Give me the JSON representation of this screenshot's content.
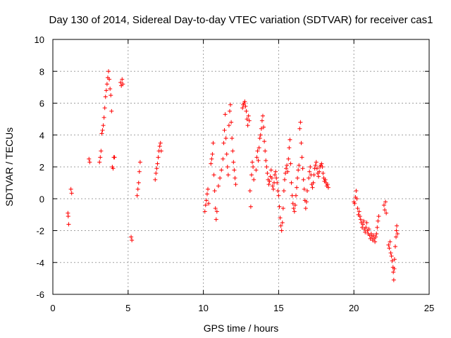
{
  "chart_data": {
    "type": "scatter",
    "title": "Day 130 of 2014, Sidereal Day-to-day VTEC variation (SDTVAR) for receiver cas1",
    "xlabel": "GPS time / hours",
    "ylabel": "SDTVAR / TECUs",
    "xlim": [
      0,
      25
    ],
    "ylim": [
      -6,
      10
    ],
    "xticks": [
      0,
      5,
      10,
      15,
      20,
      25
    ],
    "yticks": [
      -6,
      -4,
      -2,
      0,
      2,
      4,
      6,
      8,
      10
    ],
    "grid": true,
    "marker": "+",
    "color": "#ff0000",
    "series": [
      {
        "name": "SDTVAR",
        "points": [
          [
            1.0,
            -0.9
          ],
          [
            1.02,
            -1.1
          ],
          [
            1.05,
            -1.6
          ],
          [
            1.2,
            0.6
          ],
          [
            1.25,
            0.35
          ],
          [
            2.4,
            2.5
          ],
          [
            2.45,
            2.3
          ],
          [
            3.1,
            2.3
          ],
          [
            3.15,
            2.6
          ],
          [
            3.2,
            3.0
          ],
          [
            3.25,
            4.1
          ],
          [
            3.3,
            4.3
          ],
          [
            3.35,
            4.6
          ],
          [
            3.4,
            5.1
          ],
          [
            3.45,
            5.7
          ],
          [
            3.5,
            6.4
          ],
          [
            3.55,
            6.8
          ],
          [
            3.6,
            7.2
          ],
          [
            3.65,
            7.6
          ],
          [
            3.7,
            8.0
          ],
          [
            3.75,
            7.5
          ],
          [
            3.8,
            6.9
          ],
          [
            3.85,
            6.5
          ],
          [
            3.9,
            5.5
          ],
          [
            3.95,
            2.0
          ],
          [
            4.0,
            1.9
          ],
          [
            4.05,
            2.6
          ],
          [
            4.1,
            2.6
          ],
          [
            4.5,
            7.3
          ],
          [
            4.55,
            7.1
          ],
          [
            4.6,
            7.5
          ],
          [
            4.65,
            7.2
          ],
          [
            5.2,
            -2.4
          ],
          [
            5.25,
            -2.6
          ],
          [
            5.6,
            0.2
          ],
          [
            5.65,
            0.6
          ],
          [
            5.7,
            1.0
          ],
          [
            5.75,
            1.7
          ],
          [
            5.8,
            2.3
          ],
          [
            6.8,
            1.2
          ],
          [
            6.85,
            1.6
          ],
          [
            6.9,
            1.9
          ],
          [
            6.95,
            2.2
          ],
          [
            7.0,
            2.6
          ],
          [
            7.05,
            3.0
          ],
          [
            7.1,
            3.3
          ],
          [
            7.15,
            3.5
          ],
          [
            7.2,
            3.0
          ],
          [
            10.1,
            -0.8
          ],
          [
            10.15,
            -0.4
          ],
          [
            10.2,
            -0.1
          ],
          [
            10.25,
            0.3
          ],
          [
            10.3,
            0.6
          ],
          [
            10.35,
            -0.3
          ],
          [
            10.5,
            2.2
          ],
          [
            10.55,
            2.5
          ],
          [
            10.6,
            2.8
          ],
          [
            10.65,
            3.5
          ],
          [
            10.7,
            1.5
          ],
          [
            10.75,
            0.5
          ],
          [
            10.8,
            -0.6
          ],
          [
            10.85,
            -1.3
          ],
          [
            10.9,
            -0.8
          ],
          [
            11.0,
            0.8
          ],
          [
            11.1,
            1.3
          ],
          [
            11.2,
            1.8
          ],
          [
            11.3,
            2.5
          ],
          [
            11.35,
            3.5
          ],
          [
            11.4,
            4.3
          ],
          [
            11.45,
            5.3
          ],
          [
            11.5,
            3.8
          ],
          [
            11.55,
            2.8
          ],
          [
            11.6,
            2.0
          ],
          [
            11.65,
            1.5
          ],
          [
            11.7,
            4.6
          ],
          [
            11.75,
            5.5
          ],
          [
            11.8,
            5.9
          ],
          [
            11.85,
            4.8
          ],
          [
            11.9,
            3.8
          ],
          [
            11.95,
            3.0
          ],
          [
            12.0,
            2.3
          ],
          [
            12.05,
            1.8
          ],
          [
            12.1,
            1.3
          ],
          [
            12.15,
            0.9
          ],
          [
            12.6,
            5.7
          ],
          [
            12.65,
            5.9
          ],
          [
            12.7,
            6.0
          ],
          [
            12.75,
            6.1
          ],
          [
            12.8,
            5.8
          ],
          [
            12.85,
            5.5
          ],
          [
            12.9,
            5.0
          ],
          [
            12.95,
            4.6
          ],
          [
            13.0,
            5.2
          ],
          [
            13.05,
            4.9
          ],
          [
            13.1,
            0.5
          ],
          [
            13.15,
            -0.5
          ],
          [
            13.2,
            1.5
          ],
          [
            13.25,
            2.3
          ],
          [
            13.3,
            2.0
          ],
          [
            13.35,
            1.2
          ],
          [
            13.5,
            1.8
          ],
          [
            13.55,
            2.6
          ],
          [
            13.6,
            3.0
          ],
          [
            13.65,
            2.4
          ],
          [
            13.7,
            3.2
          ],
          [
            13.75,
            3.8
          ],
          [
            13.8,
            4.0
          ],
          [
            13.85,
            4.4
          ],
          [
            13.9,
            4.9
          ],
          [
            13.95,
            5.2
          ],
          [
            14.0,
            4.5
          ],
          [
            14.05,
            3.6
          ],
          [
            14.1,
            3.0
          ],
          [
            14.15,
            2.4
          ],
          [
            14.2,
            2.0
          ],
          [
            14.25,
            1.6
          ],
          [
            14.3,
            1.2
          ],
          [
            14.35,
            0.9
          ],
          [
            14.4,
            1.1
          ],
          [
            14.45,
            1.4
          ],
          [
            14.5,
            1.8
          ],
          [
            14.55,
            1.3
          ],
          [
            14.6,
            0.8
          ],
          [
            14.65,
            0.6
          ],
          [
            14.7,
            1.0
          ],
          [
            14.75,
            1.5
          ],
          [
            14.8,
            1.7
          ],
          [
            14.85,
            1.3
          ],
          [
            14.9,
            1.0
          ],
          [
            14.95,
            0.5
          ],
          [
            15.0,
            0.2
          ],
          [
            15.05,
            -0.5
          ],
          [
            15.1,
            -1.2
          ],
          [
            15.15,
            -1.7
          ],
          [
            15.2,
            -2.0
          ],
          [
            15.25,
            -1.5
          ],
          [
            15.3,
            -0.6
          ],
          [
            15.35,
            0.5
          ],
          [
            15.4,
            1.2
          ],
          [
            15.45,
            1.6
          ],
          [
            15.5,
            1.9
          ],
          [
            15.55,
            2.1
          ],
          [
            15.6,
            1.7
          ],
          [
            15.65,
            2.5
          ],
          [
            15.7,
            3.2
          ],
          [
            15.75,
            3.7
          ],
          [
            15.8,
            2.2
          ],
          [
            15.85,
            1.0
          ],
          [
            15.9,
            0.2
          ],
          [
            15.95,
            -0.3
          ],
          [
            16.0,
            -0.6
          ],
          [
            16.05,
            -0.8
          ],
          [
            16.1,
            -0.4
          ],
          [
            16.15,
            0.2
          ],
          [
            16.2,
            0.7
          ],
          [
            16.25,
            1.3
          ],
          [
            16.3,
            1.8
          ],
          [
            16.35,
            2.1
          ],
          [
            16.4,
            4.4
          ],
          [
            16.45,
            4.8
          ],
          [
            16.5,
            3.5
          ],
          [
            16.55,
            2.6
          ],
          [
            16.6,
            1.9
          ],
          [
            16.65,
            1.2
          ],
          [
            16.7,
            0.6
          ],
          [
            16.75,
            -0.1
          ],
          [
            16.8,
            -0.6
          ],
          [
            16.85,
            -0.2
          ],
          [
            16.9,
            0.5
          ],
          [
            17.0,
            1.3
          ],
          [
            17.05,
            1.7
          ],
          [
            17.1,
            2.0
          ],
          [
            17.15,
            1.5
          ],
          [
            17.2,
            0.9
          ],
          [
            17.25,
            0.7
          ],
          [
            17.3,
            1.0
          ],
          [
            17.35,
            1.5
          ],
          [
            17.4,
            1.9
          ],
          [
            17.45,
            2.1
          ],
          [
            17.5,
            2.3
          ],
          [
            17.55,
            1.9
          ],
          [
            17.6,
            1.6
          ],
          [
            17.65,
            1.4
          ],
          [
            17.7,
            1.7
          ],
          [
            17.75,
            2.0
          ],
          [
            17.8,
            2.1
          ],
          [
            17.85,
            2.2
          ],
          [
            17.9,
            2.0
          ],
          [
            17.95,
            1.6
          ],
          [
            18.0,
            1.3
          ],
          [
            18.05,
            1.1
          ],
          [
            18.1,
            1.2
          ],
          [
            18.15,
            1.0
          ],
          [
            18.2,
            0.8
          ],
          [
            18.25,
            0.9
          ],
          [
            18.3,
            0.7
          ],
          [
            20.0,
            -0.2
          ],
          [
            20.05,
            -0.3
          ],
          [
            20.1,
            0.1
          ],
          [
            20.15,
            0.5
          ],
          [
            20.2,
            0.0
          ],
          [
            20.25,
            -0.6
          ],
          [
            20.3,
            -1.0
          ],
          [
            20.35,
            -0.8
          ],
          [
            20.4,
            -1.1
          ],
          [
            20.45,
            -1.3
          ],
          [
            20.5,
            -1.5
          ],
          [
            20.55,
            -1.8
          ],
          [
            20.6,
            -1.6
          ],
          [
            20.65,
            -1.4
          ],
          [
            20.7,
            -1.9
          ],
          [
            20.75,
            -2.1
          ],
          [
            20.8,
            -1.8
          ],
          [
            20.85,
            -1.5
          ],
          [
            20.9,
            -2.0
          ],
          [
            20.95,
            -2.2
          ],
          [
            21.0,
            -1.9
          ],
          [
            21.05,
            -2.3
          ],
          [
            21.1,
            -2.5
          ],
          [
            21.15,
            -2.2
          ],
          [
            21.2,
            -2.4
          ],
          [
            21.25,
            -2.6
          ],
          [
            21.3,
            -2.3
          ],
          [
            21.35,
            -2.5
          ],
          [
            21.4,
            -2.7
          ],
          [
            21.45,
            -2.4
          ],
          [
            21.5,
            -2.2
          ],
          [
            21.55,
            -1.8
          ],
          [
            21.6,
            -1.4
          ],
          [
            21.65,
            -1.1
          ],
          [
            22.0,
            -0.4
          ],
          [
            22.05,
            -0.7
          ],
          [
            22.1,
            -0.2
          ],
          [
            22.15,
            -0.9
          ],
          [
            22.3,
            -2.9
          ],
          [
            22.35,
            -3.1
          ],
          [
            22.4,
            -2.7
          ],
          [
            22.45,
            -3.4
          ],
          [
            22.5,
            -3.6
          ],
          [
            22.55,
            -3.9
          ],
          [
            22.6,
            -4.3
          ],
          [
            22.62,
            -4.6
          ],
          [
            22.65,
            -5.1
          ],
          [
            22.68,
            -4.4
          ],
          [
            22.7,
            -3.8
          ],
          [
            22.75,
            -3.0
          ],
          [
            22.8,
            -2.4
          ],
          [
            22.82,
            -2.0
          ],
          [
            22.85,
            -1.7
          ],
          [
            22.9,
            -2.2
          ]
        ]
      }
    ]
  }
}
